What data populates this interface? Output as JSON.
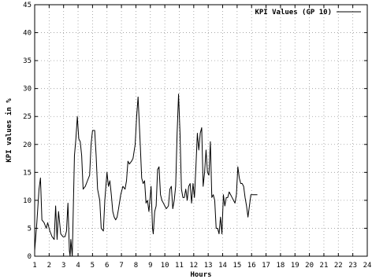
{
  "chart_data": {
    "type": "line",
    "xlabel": "Hours",
    "ylabel": "KPI values in %",
    "xlim": [
      1,
      24
    ],
    "ylim": [
      0,
      45
    ],
    "x_ticks": [
      1,
      2,
      3,
      4,
      5,
      6,
      7,
      8,
      9,
      10,
      11,
      12,
      13,
      14,
      15,
      16,
      17,
      18,
      19,
      20,
      21,
      22,
      23,
      24
    ],
    "y_ticks": [
      0,
      5,
      10,
      15,
      20,
      25,
      30,
      35,
      40,
      45
    ],
    "grid": true,
    "legend_position": "top-right",
    "series": [
      {
        "name": "KPI Values (GP 10)",
        "color": "#000000",
        "points": [
          [
            1.0,
            1.0
          ],
          [
            1.15,
            6.0
          ],
          [
            1.3,
            12.0
          ],
          [
            1.4,
            14.0
          ],
          [
            1.5,
            6.5
          ],
          [
            1.65,
            6.0
          ],
          [
            1.8,
            5.0
          ],
          [
            1.9,
            6.0
          ],
          [
            2.05,
            4.5
          ],
          [
            2.2,
            3.5
          ],
          [
            2.35,
            3.0
          ],
          [
            2.45,
            9.0
          ],
          [
            2.55,
            3.0
          ],
          [
            2.65,
            8.0
          ],
          [
            2.8,
            4.0
          ],
          [
            2.95,
            3.5
          ],
          [
            3.1,
            3.5
          ],
          [
            3.2,
            4.5
          ],
          [
            3.3,
            9.5
          ],
          [
            3.4,
            1.0
          ],
          [
            3.45,
            0.0
          ],
          [
            3.5,
            3.0
          ],
          [
            3.6,
            0.0
          ],
          [
            3.75,
            18.0
          ],
          [
            3.85,
            21.0
          ],
          [
            3.95,
            25.0
          ],
          [
            4.05,
            21.0
          ],
          [
            4.15,
            20.5
          ],
          [
            4.25,
            18.0
          ],
          [
            4.35,
            12.0
          ],
          [
            4.5,
            12.5
          ],
          [
            4.65,
            13.5
          ],
          [
            4.8,
            14.5
          ],
          [
            4.9,
            20.0
          ],
          [
            5.0,
            22.5
          ],
          [
            5.15,
            22.5
          ],
          [
            5.25,
            18.0
          ],
          [
            5.35,
            12.0
          ],
          [
            5.5,
            10.0
          ],
          [
            5.6,
            5.0
          ],
          [
            5.75,
            4.5
          ],
          [
            5.85,
            10.0
          ],
          [
            6.0,
            15.0
          ],
          [
            6.1,
            12.5
          ],
          [
            6.2,
            13.5
          ],
          [
            6.3,
            11.0
          ],
          [
            6.4,
            8.0
          ],
          [
            6.5,
            7.0
          ],
          [
            6.6,
            6.5
          ],
          [
            6.7,
            7.0
          ],
          [
            6.8,
            8.5
          ],
          [
            6.95,
            11.0
          ],
          [
            7.1,
            12.5
          ],
          [
            7.25,
            12.0
          ],
          [
            7.35,
            13.5
          ],
          [
            7.45,
            17.0
          ],
          [
            7.55,
            16.5
          ],
          [
            7.7,
            17.0
          ],
          [
            7.8,
            17.5
          ],
          [
            7.95,
            20.0
          ],
          [
            8.05,
            25.0
          ],
          [
            8.15,
            28.5
          ],
          [
            8.3,
            20.0
          ],
          [
            8.4,
            14.0
          ],
          [
            8.5,
            13.0
          ],
          [
            8.6,
            13.5
          ],
          [
            8.7,
            9.5
          ],
          [
            8.8,
            10.0
          ],
          [
            8.9,
            8.0
          ],
          [
            9.0,
            11.0
          ],
          [
            9.05,
            12.5
          ],
          [
            9.15,
            5.0
          ],
          [
            9.2,
            4.0
          ],
          [
            9.3,
            8.0
          ],
          [
            9.4,
            9.0
          ],
          [
            9.5,
            15.5
          ],
          [
            9.6,
            16.0
          ],
          [
            9.7,
            11.0
          ],
          [
            9.8,
            10.0
          ],
          [
            9.9,
            9.5
          ],
          [
            10.0,
            9.0
          ],
          [
            10.1,
            8.5
          ],
          [
            10.25,
            9.0
          ],
          [
            10.35,
            12.0
          ],
          [
            10.45,
            12.5
          ],
          [
            10.55,
            8.5
          ],
          [
            10.65,
            10.0
          ],
          [
            10.75,
            12.5
          ],
          [
            10.85,
            22.0
          ],
          [
            10.95,
            29.0
          ],
          [
            11.05,
            22.0
          ],
          [
            11.15,
            12.0
          ],
          [
            11.25,
            10.5
          ],
          [
            11.35,
            10.5
          ],
          [
            11.45,
            12.0
          ],
          [
            11.55,
            10.0
          ],
          [
            11.65,
            12.5
          ],
          [
            11.75,
            13.0
          ],
          [
            11.85,
            9.5
          ],
          [
            11.95,
            13.0
          ],
          [
            12.05,
            10.5
          ],
          [
            12.15,
            16.0
          ],
          [
            12.25,
            22.0
          ],
          [
            12.35,
            19.0
          ],
          [
            12.45,
            22.0
          ],
          [
            12.55,
            23.0
          ],
          [
            12.65,
            12.5
          ],
          [
            12.75,
            15.0
          ],
          [
            12.85,
            19.0
          ],
          [
            12.95,
            15.0
          ],
          [
            13.05,
            14.5
          ],
          [
            13.15,
            20.5
          ],
          [
            13.25,
            10.5
          ],
          [
            13.35,
            11.0
          ],
          [
            13.45,
            10.0
          ],
          [
            13.55,
            5.0
          ],
          [
            13.65,
            5.0
          ],
          [
            13.75,
            4.0
          ],
          [
            13.85,
            7.0
          ],
          [
            13.95,
            4.0
          ],
          [
            14.05,
            11.0
          ],
          [
            14.15,
            9.0
          ],
          [
            14.25,
            10.5
          ],
          [
            14.35,
            10.5
          ],
          [
            14.45,
            11.5
          ],
          [
            14.55,
            11.0
          ],
          [
            14.65,
            10.5
          ],
          [
            14.75,
            10.0
          ],
          [
            14.85,
            9.5
          ],
          [
            14.95,
            11.0
          ],
          [
            15.05,
            16.0
          ],
          [
            15.15,
            14.0
          ],
          [
            15.25,
            13.0
          ],
          [
            15.35,
            13.0
          ],
          [
            15.45,
            12.5
          ],
          [
            15.55,
            10.5
          ],
          [
            15.65,
            9.0
          ],
          [
            15.75,
            7.0
          ],
          [
            15.85,
            9.0
          ],
          [
            15.95,
            11.0
          ],
          [
            16.05,
            11.0
          ],
          [
            16.15,
            11.0
          ],
          [
            16.25,
            11.0
          ],
          [
            16.4,
            11.0
          ]
        ]
      }
    ]
  }
}
